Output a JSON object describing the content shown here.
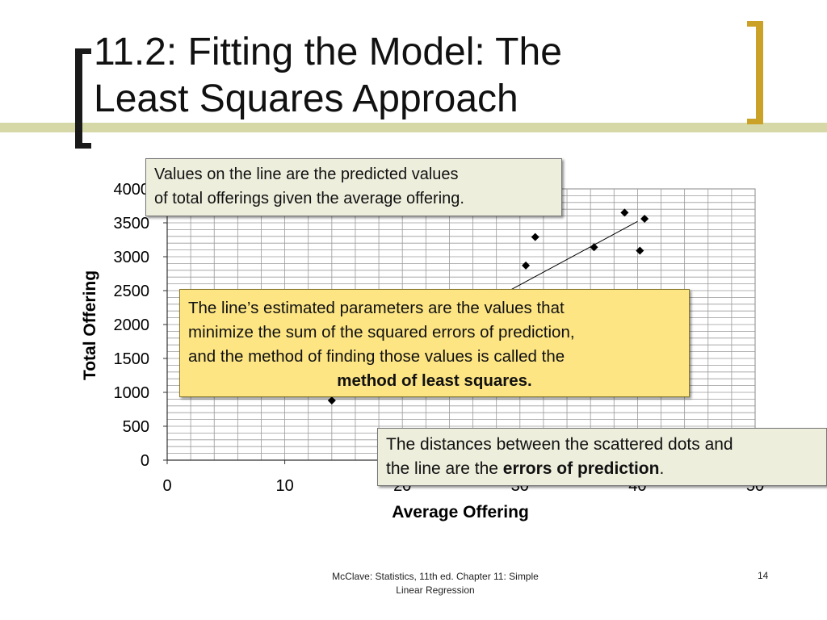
{
  "slide": {
    "title_line1": "11.2: Fitting the Model: The",
    "title_line2": "Least Squares Approach",
    "footer_line1": "McClave: Statistics, 11th ed. Chapter 11: Simple",
    "footer_line2": "Linear Regression",
    "page_number": "14",
    "colors": {
      "band": "#d6d8a8",
      "left_bracket": "#1a1a1a",
      "right_bracket": "#c9a227"
    }
  },
  "callouts": {
    "c1_line1": "Values on the line are the predicted values",
    "c1_line2": "of total offerings given the average offering.",
    "c2_line1": "The line’s estimated parameters are the values that",
    "c2_line2": "minimize the sum of the squared errors of prediction,",
    "c2_line3": "and the method of finding those values is called the",
    "c2_bold": "method of least squares.",
    "c3_line1": "The distances between the scattered dots and",
    "c3_prefix": "the line are the ",
    "c3_bold": "errors of prediction",
    "c3_suffix": "."
  },
  "chart_data": {
    "type": "scatter",
    "xlabel": "Average Offering",
    "ylabel": "Total Offering",
    "xlim": [
      0,
      50
    ],
    "ylim": [
      0,
      4000
    ],
    "xticks": [
      0,
      10,
      20,
      30,
      40,
      50
    ],
    "xtick_labels": [
      "0",
      "10",
      "20",
      "30",
      "40",
      "50"
    ],
    "yticks": [
      0,
      500,
      1000,
      1500,
      2000,
      2500,
      3000,
      3500,
      4000
    ],
    "ytick_labels": [
      "0",
      "500",
      "1000",
      "1500",
      "2000",
      "2500",
      "3000",
      "3500",
      "4000"
    ],
    "grid": true,
    "points": [
      {
        "x": 14,
        "y": 880
      },
      {
        "x": 30.5,
        "y": 2870
      },
      {
        "x": 31.3,
        "y": 3290
      },
      {
        "x": 36.3,
        "y": 3140
      },
      {
        "x": 38.9,
        "y": 3650
      },
      {
        "x": 40.2,
        "y": 3090
      },
      {
        "x": 40.6,
        "y": 3560
      }
    ],
    "fit_line": {
      "x1": 20,
      "y1": 1650,
      "x2": 40,
      "y2": 3520
    },
    "marker_color": "#000000",
    "line_color": "#000000"
  }
}
